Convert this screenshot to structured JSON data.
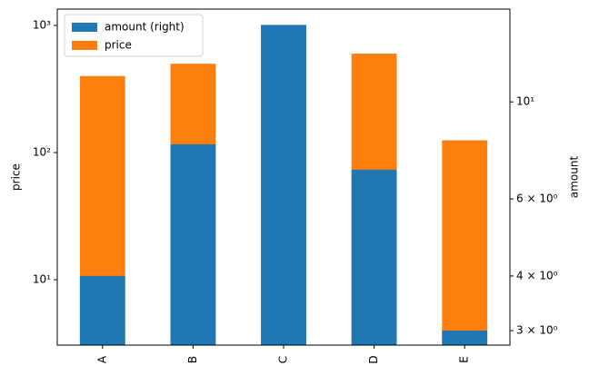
{
  "chart_data": {
    "type": "bar",
    "categories": [
      "A",
      "B",
      "C",
      "D",
      "E"
    ],
    "series": [
      {
        "name": "amount (right)",
        "color": "#1f77b4",
        "values": [
          4,
          8,
          15,
          7,
          3
        ],
        "axis": "y2"
      },
      {
        "name": "price",
        "color": "#ff7f0e",
        "values": [
          400,
          500,
          1000,
          600,
          125
        ]
      }
    ],
    "ylabel": "price",
    "y2label": "amount",
    "yscale": "log",
    "y2scale": "log",
    "ylim": [
      3.06,
      1345
    ],
    "yticks": [
      {
        "value": 10,
        "label": "10¹"
      },
      {
        "value": 100,
        "label": "10²"
      },
      {
        "value": 1000,
        "label": "10³"
      }
    ],
    "y2lim": [
      2.78,
      16.3
    ],
    "y2ticks": [
      {
        "value": 3,
        "label": "3 × 10⁰"
      },
      {
        "value": 4,
        "label": "4 × 10⁰"
      },
      {
        "value": 6,
        "label": "6 × 10⁰"
      },
      {
        "value": 10,
        "label": "10¹"
      }
    ],
    "legend": "upper left"
  }
}
